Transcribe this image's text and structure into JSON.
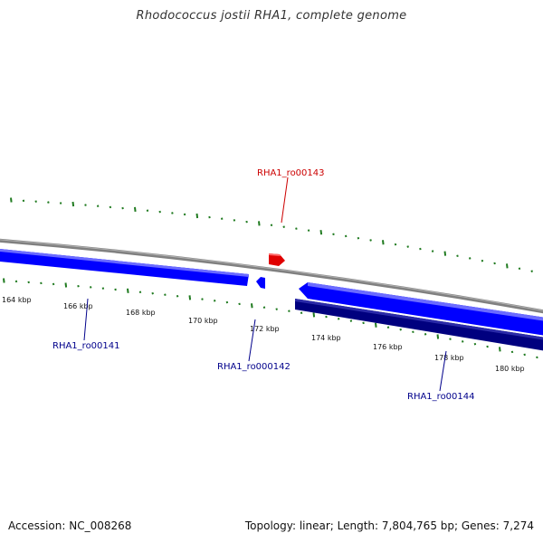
{
  "title": "Rhodococcus jostii RHA1, complete genome",
  "footer": {
    "accession": "Accession: NC_008268",
    "summary": "Topology: linear; Length: 7,804,765 bp; Genes: 7,274"
  },
  "colors": {
    "backbone": "#808080",
    "forward_gene": "#0000ff",
    "forward_gene_light": "#6b6bff",
    "reverse_gene": "#00007f",
    "selected_gene": "#e00000",
    "tick_marks": "#1f7a1f",
    "gene_label": "#00008b",
    "selected_label": "#cc0000"
  },
  "axis": {
    "unit": "kbp",
    "ticks": [
      {
        "label": "164 kbp"
      },
      {
        "label": "166 kbp"
      },
      {
        "label": "168 kbp"
      },
      {
        "label": "170 kbp"
      },
      {
        "label": "172 kbp"
      },
      {
        "label": "174 kbp"
      },
      {
        "label": "176 kbp"
      },
      {
        "label": "178 kbp"
      },
      {
        "label": "180 kbp"
      }
    ]
  },
  "genes": [
    {
      "id": "RHA1_ro00141",
      "strand": "forward",
      "selected": false
    },
    {
      "id": "RHA1_ro000142",
      "strand": "forward",
      "selected": false
    },
    {
      "id": "RHA1_ro00143",
      "strand": "forward",
      "selected": true
    },
    {
      "id": "RHA1_ro00144",
      "strand": "forward",
      "selected": false
    }
  ]
}
